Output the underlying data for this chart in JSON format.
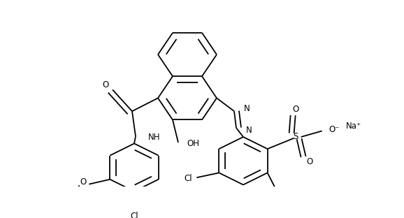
{
  "background": "#ffffff",
  "line_color": "#000000",
  "line_width": 1.3,
  "figsize": [
    5.78,
    3.12
  ],
  "dpi": 100,
  "xlim": [
    0,
    578
  ],
  "ylim": [
    0,
    312
  ]
}
